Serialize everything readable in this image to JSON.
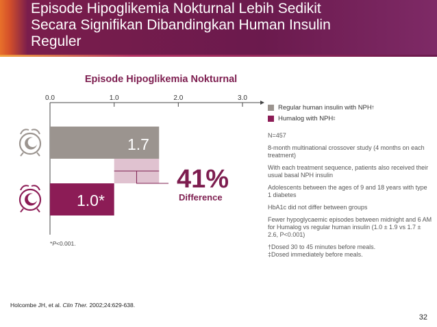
{
  "slide": {
    "title_lines": [
      "Episode Hipoglikemia Nokturnal Lebih Sedikit",
      "Secara Signifikan Dibandingkan Human Insulin",
      "Reguler"
    ],
    "page_number": "32",
    "citation": {
      "authors": "Holcombe JH, et al.",
      "journal": "Clin Ther.",
      "details": "2002;24:629-638."
    }
  },
  "colors": {
    "regular": "#9b948f",
    "humalog": "#8c1c56",
    "difference": "#e0c2d0",
    "title": "#7d1d4f"
  },
  "chart_data": {
    "type": "bar",
    "orientation": "horizontal",
    "title": "Episode Hipoglikemia Nokturnal",
    "xlim": [
      0,
      3
    ],
    "ticks": [
      0,
      1,
      2,
      3
    ],
    "tick_labels": [
      "0.0",
      "1.0",
      "2.0",
      "3.0"
    ],
    "categories": [
      "Regular human insulin with NPH",
      "Humalog with NPH"
    ],
    "values": [
      1.7,
      1.0
    ],
    "bar_labels": [
      "1.7",
      "1.0*"
    ],
    "icons": [
      "alarm-clock-icon",
      "alarm-clock-icon"
    ],
    "difference": {
      "value": "41%",
      "label": "Difference"
    },
    "footnote": "*P<0.001.",
    "legend": [
      {
        "label": "Regular human insulin with NPH",
        "mark": "†",
        "color": "#9b948f"
      },
      {
        "label": "Humalog with NPH",
        "mark": "‡",
        "color": "#8c1c56"
      }
    ],
    "notes": [
      "N=457",
      "8-month multinational crossover study (4 months on each treatment)",
      "With each treatment sequence, patients also received their usual basal NPH insulin",
      "Adolescents between the ages of 9 and 18 years with type 1 diabetes",
      "HbA1c did not differ between groups",
      "Fewer hypoglycaemic episodes between midnight and 6 AM for Humalog vs regular human insulin (1.0 ± 1.9 vs 1.7 ± 2.6, P<0.001)"
    ],
    "dosing_notes": [
      "†Dosed 30 to 45 minutes before meals.",
      "‡Dosed immediately before meals."
    ]
  }
}
